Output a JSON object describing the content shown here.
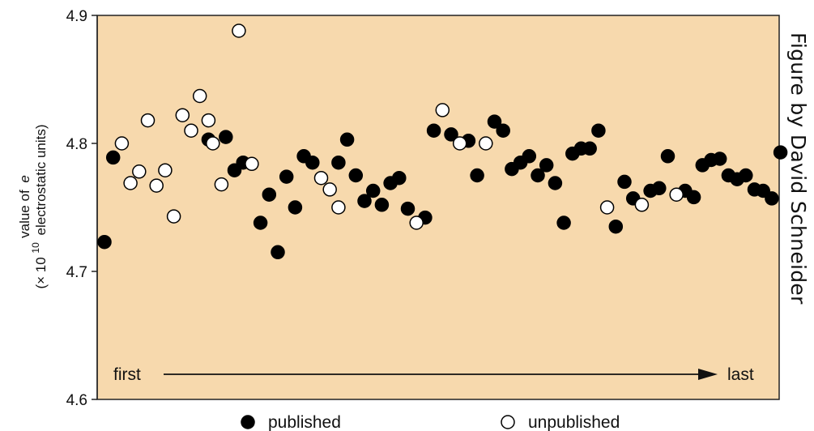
{
  "credit": "Figure by David Schneider",
  "colors": {
    "plot_bg": "#f7d9ad",
    "published": "#000000",
    "unpublished": "#ffffff"
  },
  "chart_data": {
    "type": "scatter",
    "ylabel_line1": "value of",
    "ylabel_italic": "e",
    "ylabel_line2_prefix": "(× 10",
    "ylabel_exponent": "10",
    "ylabel_line2_suffix": "electrostatic units)",
    "ylim": [
      4.6,
      4.9
    ],
    "yticks": [
      "4.6",
      "4.7",
      "4.8",
      "4.9"
    ],
    "x_axis": {
      "start_label": "first",
      "end_label": "last"
    },
    "legend": {
      "published": "published",
      "unpublished": "unpublished"
    },
    "series": [
      {
        "name": "published",
        "points": [
          [
            1,
            4.723
          ],
          [
            2,
            4.789
          ],
          [
            13,
            4.803
          ],
          [
            15,
            4.805
          ],
          [
            16,
            4.779
          ],
          [
            17,
            4.785
          ],
          [
            19,
            4.738
          ],
          [
            20,
            4.76
          ],
          [
            21,
            4.715
          ],
          [
            22,
            4.774
          ],
          [
            23,
            4.75
          ],
          [
            24,
            4.79
          ],
          [
            25,
            4.785
          ],
          [
            28,
            4.785
          ],
          [
            29,
            4.803
          ],
          [
            30,
            4.775
          ],
          [
            31,
            4.755
          ],
          [
            32,
            4.763
          ],
          [
            33,
            4.752
          ],
          [
            34,
            4.769
          ],
          [
            35,
            4.773
          ],
          [
            36,
            4.749
          ],
          [
            38,
            4.742
          ],
          [
            39,
            4.81
          ],
          [
            41,
            4.807
          ],
          [
            43,
            4.802
          ],
          [
            44,
            4.775
          ],
          [
            46,
            4.817
          ],
          [
            47,
            4.81
          ],
          [
            48,
            4.78
          ],
          [
            49,
            4.785
          ],
          [
            50,
            4.79
          ],
          [
            51,
            4.775
          ],
          [
            52,
            4.783
          ],
          [
            53,
            4.769
          ],
          [
            54,
            4.738
          ],
          [
            55,
            4.792
          ],
          [
            56,
            4.796
          ],
          [
            57,
            4.796
          ],
          [
            58,
            4.81
          ],
          [
            60,
            4.735
          ],
          [
            61,
            4.77
          ],
          [
            62,
            4.757
          ],
          [
            64,
            4.763
          ],
          [
            65,
            4.765
          ],
          [
            66,
            4.79
          ],
          [
            68,
            4.763
          ],
          [
            69,
            4.758
          ],
          [
            70,
            4.783
          ],
          [
            71,
            4.787
          ],
          [
            72,
            4.788
          ],
          [
            73,
            4.775
          ],
          [
            74,
            4.772
          ],
          [
            75,
            4.775
          ],
          [
            76,
            4.764
          ],
          [
            77,
            4.763
          ],
          [
            78,
            4.757
          ],
          [
            79,
            4.793
          ]
        ]
      },
      {
        "name": "unpublished",
        "points": [
          [
            3,
            4.8
          ],
          [
            4,
            4.769
          ],
          [
            5,
            4.778
          ],
          [
            6,
            4.818
          ],
          [
            7,
            4.767
          ],
          [
            8,
            4.779
          ],
          [
            9,
            4.743
          ],
          [
            10,
            4.822
          ],
          [
            11,
            4.81
          ],
          [
            12,
            4.837
          ],
          [
            13,
            4.818
          ],
          [
            13.5,
            4.8
          ],
          [
            14.5,
            4.768
          ],
          [
            18,
            4.784
          ],
          [
            26,
            4.773
          ],
          [
            27,
            4.764
          ],
          [
            28,
            4.75
          ],
          [
            37,
            4.738
          ],
          [
            40,
            4.826
          ],
          [
            42,
            4.8
          ],
          [
            45,
            4.8
          ],
          [
            59,
            4.75
          ],
          [
            63,
            4.752
          ],
          [
            67,
            4.76
          ],
          [
            16.5,
            4.888
          ]
        ]
      }
    ]
  }
}
